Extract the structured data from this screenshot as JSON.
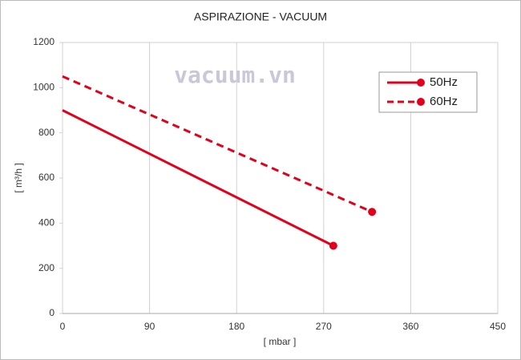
{
  "chart_data": {
    "type": "line",
    "title": "ASPIRAZIONE - VACUUM",
    "xlabel": "[ mbar ]",
    "ylabel": "[ m³/h ]",
    "annotation": "vacuum.vn",
    "xlim": [
      0,
      450
    ],
    "xticks": [
      0,
      90,
      180,
      270,
      360,
      450
    ],
    "ylim": [
      0,
      1200
    ],
    "yticks": [
      0,
      200,
      400,
      600,
      800,
      1000,
      1200
    ],
    "grid": "x",
    "legend": "upper right",
    "series": [
      {
        "name": "50Hz",
        "color": "#e3001b",
        "dashed": false,
        "x": [
          0,
          280
        ],
        "values": [
          900,
          300
        ]
      },
      {
        "name": "60Hz",
        "color": "#e3001b",
        "dashed": true,
        "x": [
          0,
          320
        ],
        "values": [
          1050,
          450
        ]
      }
    ]
  }
}
